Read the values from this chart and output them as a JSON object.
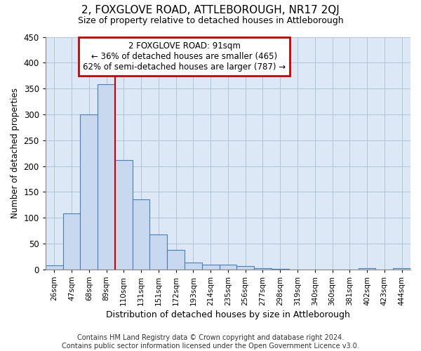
{
  "title": "2, FOXGLOVE ROAD, ATTLEBOROUGH, NR17 2QJ",
  "subtitle": "Size of property relative to detached houses in Attleborough",
  "xlabel": "Distribution of detached houses by size in Attleborough",
  "ylabel": "Number of detached properties",
  "footer_line1": "Contains HM Land Registry data © Crown copyright and database right 2024.",
  "footer_line2": "Contains public sector information licensed under the Open Government Licence v3.0.",
  "categories": [
    "26sqm",
    "47sqm",
    "68sqm",
    "89sqm",
    "110sqm",
    "131sqm",
    "151sqm",
    "172sqm",
    "193sqm",
    "214sqm",
    "235sqm",
    "256sqm",
    "277sqm",
    "298sqm",
    "319sqm",
    "340sqm",
    "360sqm",
    "381sqm",
    "402sqm",
    "423sqm",
    "444sqm"
  ],
  "values": [
    8,
    108,
    300,
    358,
    212,
    135,
    68,
    38,
    13,
    10,
    9,
    6,
    3,
    1,
    0,
    0,
    0,
    0,
    3,
    0,
    2
  ],
  "bar_color": "#c8d8ee",
  "bar_edge_color": "#4a7fb5",
  "background_color": "#ffffff",
  "plot_bg_color": "#dce8f5",
  "grid_color": "#b0c4d8",
  "annotation_text": "2 FOXGLOVE ROAD: 91sqm\n← 36% of detached houses are smaller (465)\n62% of semi-detached houses are larger (787) →",
  "annotation_box_edge": "#cc0000",
  "vline_color": "#cc0000",
  "vline_x_index": 3,
  "ylim": [
    0,
    450
  ],
  "yticks": [
    0,
    50,
    100,
    150,
    200,
    250,
    300,
    350,
    400,
    450
  ]
}
